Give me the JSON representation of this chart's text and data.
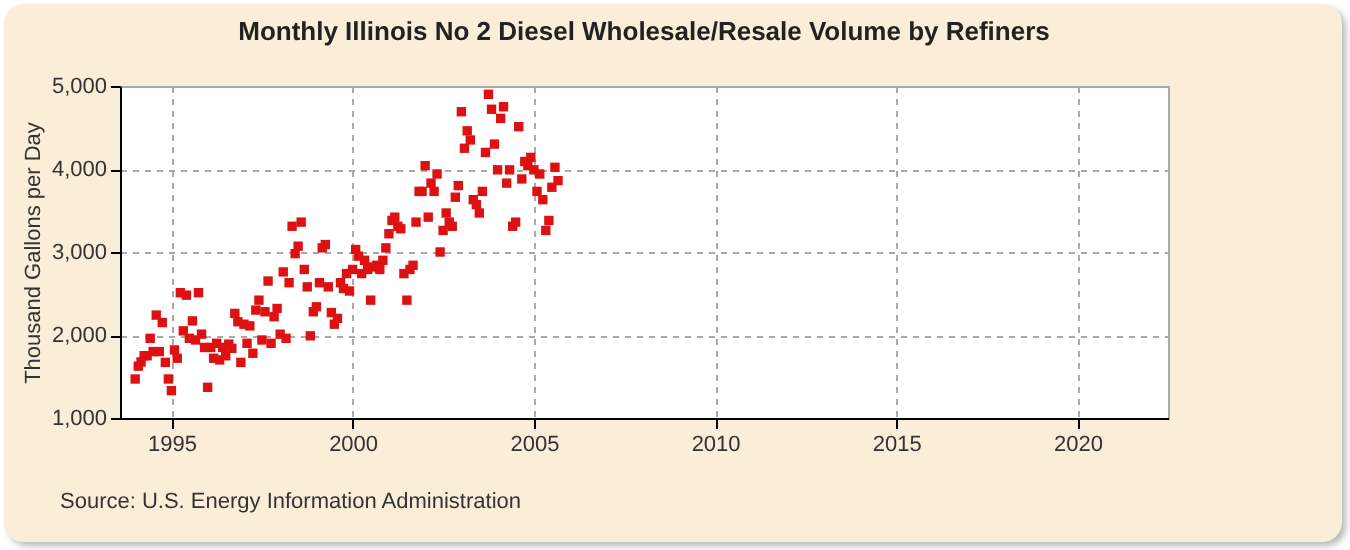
{
  "chart_data": {
    "type": "scatter",
    "title": "Monthly Illinois No 2 Diesel Wholesale/Resale Volume by Refiners",
    "ylabel": "Thousand Gallons per Day",
    "annotations": [
      "Source: U.S. Energy Information Administration"
    ],
    "x": [
      "1994-01",
      "1994-02",
      "1994-03",
      "1994-04",
      "1994-05",
      "1994-06",
      "1994-07",
      "1994-08",
      "1994-09",
      "1994-10",
      "1994-11",
      "1994-12",
      "1995-01",
      "1995-02",
      "1995-03",
      "1995-04",
      "1995-05",
      "1995-06",
      "1995-07",
      "1995-08",
      "1995-09",
      "1995-10",
      "1995-11",
      "1995-12",
      "1996-01",
      "1996-02",
      "1996-03",
      "1996-04",
      "1996-05",
      "1996-06",
      "1996-07",
      "1996-08",
      "1996-09",
      "1996-10",
      "1996-11",
      "1996-12",
      "1997-01",
      "1997-02",
      "1997-03",
      "1997-04",
      "1997-05",
      "1997-06",
      "1997-07",
      "1997-08",
      "1997-09",
      "1997-10",
      "1997-11",
      "1997-12",
      "1998-01",
      "1998-02",
      "1998-03",
      "1998-04",
      "1998-05",
      "1998-06",
      "1998-07",
      "1998-08",
      "1998-09",
      "1998-10",
      "1998-11",
      "1998-12",
      "1999-01",
      "1999-02",
      "1999-03",
      "1999-04",
      "1999-05",
      "1999-06",
      "1999-07",
      "1999-08",
      "1999-09",
      "1999-10",
      "1999-11",
      "1999-12",
      "2000-01",
      "2000-02",
      "2000-03",
      "2000-04",
      "2000-05",
      "2000-06",
      "2000-07",
      "2000-08",
      "2000-09",
      "2000-10",
      "2000-11",
      "2000-12",
      "2001-01",
      "2001-02",
      "2001-03",
      "2001-04",
      "2001-05",
      "2001-06",
      "2001-07",
      "2001-08",
      "2001-09",
      "2001-10",
      "2001-11",
      "2001-12",
      "2002-01",
      "2002-02",
      "2002-03",
      "2002-04",
      "2002-05",
      "2002-06",
      "2002-07",
      "2002-08",
      "2002-09",
      "2002-10",
      "2002-11",
      "2002-12",
      "2003-01",
      "2003-02",
      "2003-03",
      "2003-04",
      "2003-05",
      "2003-06",
      "2003-07",
      "2003-08",
      "2003-09",
      "2003-10",
      "2003-11",
      "2003-12",
      "2004-01",
      "2004-02",
      "2004-03",
      "2004-04",
      "2004-05",
      "2004-06",
      "2004-07",
      "2004-08",
      "2004-09",
      "2004-10",
      "2004-11",
      "2004-12",
      "2005-01",
      "2005-02",
      "2005-03",
      "2005-04",
      "2005-05",
      "2005-06",
      "2005-07",
      "2005-08",
      "2005-09"
    ],
    "series": [
      {
        "color": "#dd1111",
        "values": [
          1470,
          1625,
          1675,
          1750,
          1750,
          1960,
          1800,
          2240,
          1800,
          2150,
          1670,
          1470,
          1330,
          1820,
          1720,
          2510,
          2050,
          2480,
          1960,
          2170,
          1940,
          2510,
          2010,
          1850,
          1370,
          1850,
          1720,
          1900,
          1700,
          1850,
          1750,
          1890,
          1840,
          2260,
          2160,
          1670,
          2130,
          1900,
          2110,
          1780,
          2300,
          2420,
          1940,
          2280,
          2650,
          1900,
          2220,
          2320,
          2010,
          2760,
          1960,
          2630,
          3310,
          2980,
          3070,
          3360,
          2790,
          2580,
          1990,
          2280,
          2340,
          2630,
          3050,
          3090,
          2580,
          2270,
          2130,
          2200,
          2630,
          2560,
          2740,
          2530,
          2790,
          3030,
          2950,
          2740,
          2900,
          2790,
          2420,
          2820,
          2840,
          2790,
          2900,
          3050,
          3220,
          3380,
          3420,
          3310,
          3280,
          2740,
          2420,
          2790,
          2840,
          3360,
          3730,
          3730,
          4040,
          3420,
          3830,
          3730,
          3940,
          3000,
          3260,
          3470,
          3360,
          3310,
          3660,
          3800,
          4690,
          4250,
          4460,
          4350,
          3630,
          3570,
          3470,
          3730,
          4200,
          4900,
          4720,
          4300,
          3990,
          4610,
          4750,
          3830,
          3990,
          3310,
          3360,
          4510,
          3880,
          4090,
          4040,
          4140,
          3990,
          3730,
          3940,
          3630,
          3260,
          3380,
          3780,
          4020,
          3860
        ]
      }
    ],
    "xlim": [
      "1993-08",
      "2022-07"
    ],
    "xticks": [
      "1995",
      "2000",
      "2005",
      "2010",
      "2015",
      "2020"
    ],
    "ylim": [
      1000,
      5000
    ],
    "yticks": [
      {
        "value": 1000,
        "label": "1,000"
      },
      {
        "value": 2000,
        "label": "2,000"
      },
      {
        "value": 3000,
        "label": "3,000"
      },
      {
        "value": 4000,
        "label": "4,000"
      },
      {
        "value": 5000,
        "label": "5,000"
      }
    ],
    "grid": true,
    "marker": "square",
    "legend": false
  }
}
